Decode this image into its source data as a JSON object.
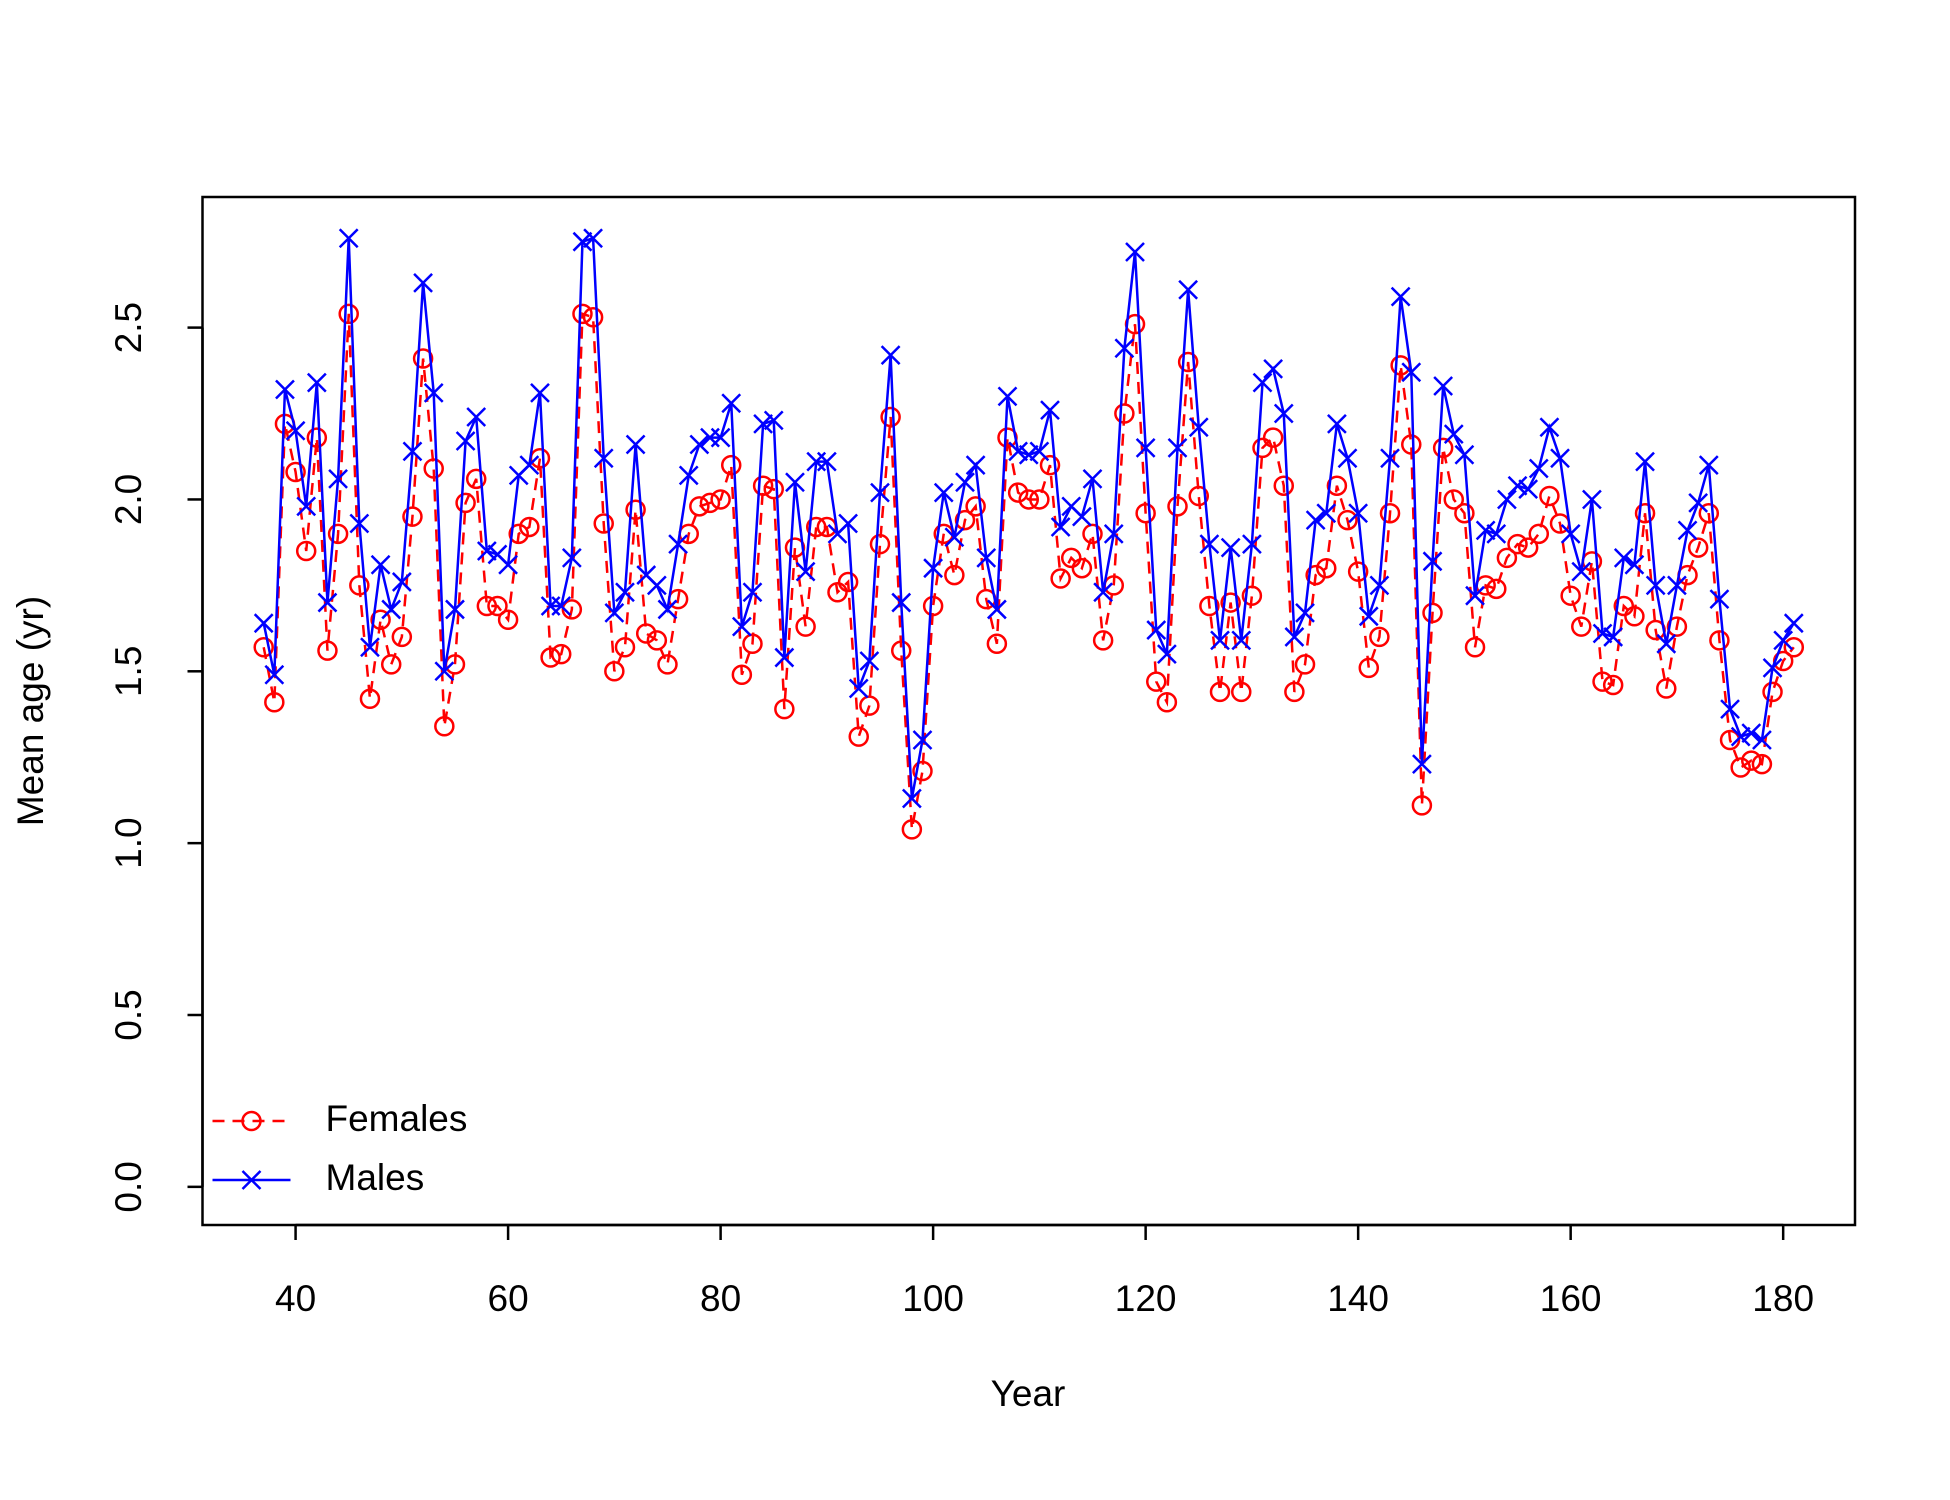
{
  "chart_data": {
    "type": "line",
    "xlabel": "Year",
    "ylabel": "Mean age (yr)",
    "x": [
      37,
      38,
      39,
      40,
      41,
      42,
      43,
      44,
      45,
      46,
      47,
      48,
      49,
      50,
      51,
      52,
      53,
      54,
      55,
      56,
      57,
      58,
      59,
      60,
      61,
      62,
      63,
      64,
      65,
      66,
      67,
      68,
      69,
      70,
      71,
      72,
      73,
      74,
      75,
      76,
      77,
      78,
      79,
      80,
      81,
      82,
      83,
      84,
      85,
      86,
      87,
      88,
      89,
      90,
      91,
      92,
      93,
      94,
      95,
      96,
      97,
      98,
      99,
      100,
      101,
      102,
      103,
      104,
      105,
      106,
      107,
      108,
      109,
      110,
      111,
      112,
      113,
      114,
      115,
      116,
      117,
      118,
      119,
      120,
      121,
      122,
      123,
      124,
      125,
      126,
      127,
      128,
      129,
      130,
      131,
      132,
      133,
      134,
      135,
      136,
      137,
      138,
      139,
      140,
      141,
      142,
      143,
      144,
      145,
      146,
      147,
      148,
      149,
      150,
      151,
      152,
      153,
      154,
      155,
      156,
      157,
      158,
      159,
      160,
      161,
      162,
      163,
      164,
      165,
      166,
      167,
      168,
      169,
      170,
      171,
      172,
      173,
      174,
      175,
      176,
      177,
      178,
      179,
      180,
      181
    ],
    "series": [
      {
        "name": "Females",
        "color": "#ff0000",
        "line_style": "dashed",
        "marker": "circle",
        "values": [
          1.57,
          1.41,
          2.22,
          2.08,
          1.85,
          2.18,
          1.56,
          1.9,
          2.54,
          1.75,
          1.42,
          1.65,
          1.52,
          1.6,
          1.95,
          2.41,
          2.09,
          1.34,
          1.52,
          1.99,
          2.06,
          1.69,
          1.69,
          1.65,
          1.9,
          1.92,
          2.12,
          1.54,
          1.55,
          1.68,
          2.54,
          2.53,
          1.93,
          1.5,
          1.57,
          1.97,
          1.61,
          1.59,
          1.52,
          1.71,
          1.9,
          1.98,
          1.99,
          2.0,
          2.1,
          1.49,
          1.58,
          2.04,
          2.03,
          1.39,
          1.86,
          1.63,
          1.92,
          1.92,
          1.73,
          1.76,
          1.31,
          1.4,
          1.87,
          2.24,
          1.56,
          1.04,
          1.21,
          1.69,
          1.9,
          1.78,
          1.94,
          1.98,
          1.71,
          1.58,
          2.18,
          2.02,
          2.0,
          2.0,
          2.1,
          1.77,
          1.83,
          1.8,
          1.9,
          1.59,
          1.75,
          2.25,
          2.51,
          1.96,
          1.47,
          1.41,
          1.98,
          2.4,
          2.01,
          1.69,
          1.44,
          1.7,
          1.44,
          1.72,
          2.15,
          2.18,
          2.04,
          1.44,
          1.52,
          1.78,
          1.8,
          2.04,
          1.94,
          1.79,
          1.51,
          1.6,
          1.96,
          2.39,
          2.16,
          1.11,
          1.67,
          2.15,
          2.0,
          1.96,
          1.57,
          1.75,
          1.74,
          1.83,
          1.87,
          1.86,
          1.9,
          2.01,
          1.93,
          1.72,
          1.63,
          1.82,
          1.47,
          1.46,
          1.69,
          1.66,
          1.96,
          1.62,
          1.45,
          1.63,
          1.78,
          1.86,
          1.96,
          1.59,
          1.3,
          1.22,
          1.24,
          1.23,
          1.44,
          1.53,
          1.57
        ]
      },
      {
        "name": "Males",
        "color": "#0000ff",
        "line_style": "solid",
        "marker": "cross",
        "values": [
          1.64,
          1.49,
          2.32,
          2.2,
          1.98,
          2.34,
          1.7,
          2.06,
          2.76,
          1.93,
          1.57,
          1.81,
          1.68,
          1.76,
          2.14,
          2.63,
          2.31,
          1.5,
          1.68,
          2.17,
          2.24,
          1.85,
          1.84,
          1.81,
          2.07,
          2.1,
          2.31,
          1.69,
          1.69,
          1.83,
          2.75,
          2.76,
          2.12,
          1.67,
          1.73,
          2.16,
          1.78,
          1.75,
          1.68,
          1.87,
          2.07,
          2.16,
          2.18,
          2.18,
          2.28,
          1.63,
          1.73,
          2.22,
          2.23,
          1.54,
          2.05,
          1.79,
          2.11,
          2.11,
          1.9,
          1.93,
          1.45,
          1.53,
          2.02,
          2.42,
          1.7,
          1.13,
          1.3,
          1.8,
          2.02,
          1.89,
          2.05,
          2.1,
          1.83,
          1.68,
          2.3,
          2.14,
          2.13,
          2.14,
          2.26,
          1.92,
          1.98,
          1.95,
          2.06,
          1.73,
          1.9,
          2.44,
          2.72,
          2.15,
          1.62,
          1.55,
          2.15,
          2.61,
          2.21,
          1.87,
          1.59,
          1.86,
          1.59,
          1.87,
          2.34,
          2.38,
          2.25,
          1.6,
          1.67,
          1.94,
          1.96,
          2.22,
          2.12,
          1.96,
          1.66,
          1.75,
          2.12,
          2.59,
          2.37,
          1.23,
          1.82,
          2.33,
          2.19,
          2.13,
          1.72,
          1.91,
          1.9,
          2.0,
          2.04,
          2.03,
          2.09,
          2.21,
          2.12,
          1.9,
          1.79,
          2.0,
          1.61,
          1.6,
          1.83,
          1.81,
          2.11,
          1.75,
          1.58,
          1.75,
          1.91,
          1.99,
          2.1,
          1.71,
          1.39,
          1.31,
          1.32,
          1.3,
          1.51,
          1.59,
          1.64
        ]
      }
    ],
    "xlim": [
      31.24,
      186.76
    ],
    "xticks": [
      40,
      60,
      80,
      100,
      120,
      140,
      160,
      180
    ],
    "ylim": [
      -0.111,
      2.88
    ],
    "yticks": [
      {
        "value": 0,
        "label": "0.0"
      },
      {
        "value": 0.5,
        "label": "0.5"
      },
      {
        "value": 1,
        "label": "1.0"
      },
      {
        "value": 1.5,
        "label": "1.5"
      },
      {
        "value": 2,
        "label": "2.0"
      },
      {
        "value": 2.5,
        "label": "2.5"
      }
    ],
    "legend": "bottomleft"
  }
}
